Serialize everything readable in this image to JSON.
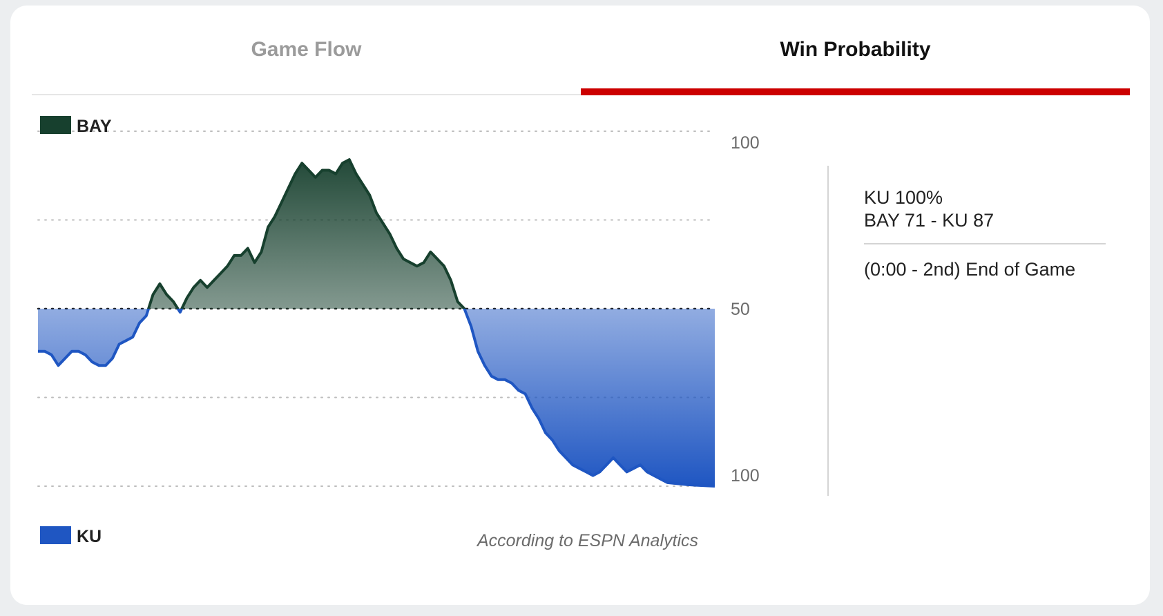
{
  "tabs": [
    {
      "label": "Game Flow",
      "active": false
    },
    {
      "label": "Win Probability",
      "active": true
    }
  ],
  "accent_color": "#cc0000",
  "teams": {
    "top": {
      "abbr": "BAY",
      "color": "#17402e"
    },
    "bottom": {
      "abbr": "KU",
      "color": "#1f56c2"
    }
  },
  "info": {
    "probability": "KU 100%",
    "score": "BAY 71 - KU 87",
    "status": "(0:00 - 2nd) End of Game"
  },
  "chart_data": {
    "type": "area",
    "title": "",
    "xlabel": "",
    "ylabel": "",
    "credit": "According to ESPN Analytics",
    "ylim": [
      0,
      100
    ],
    "y_tick_labels": [
      "100",
      "50",
      "100"
    ],
    "gridlines": [
      0,
      25,
      50,
      75,
      100
    ],
    "x": [
      0,
      3,
      6,
      9,
      12,
      15,
      18,
      21,
      24,
      27,
      30,
      33,
      36,
      39,
      42,
      45,
      48,
      51,
      54,
      57,
      60,
      63,
      66,
      69,
      72,
      75,
      78,
      81,
      84,
      87,
      90,
      93,
      96,
      99,
      102,
      105,
      108,
      111,
      114,
      117,
      120,
      123,
      126,
      129,
      132,
      135,
      138,
      141,
      144,
      147,
      150,
      153,
      156,
      159,
      162,
      165,
      168,
      171,
      174,
      177,
      180,
      183,
      186,
      189,
      192,
      195,
      198,
      201,
      204,
      207,
      210,
      213,
      216,
      219,
      222,
      225,
      228,
      231,
      234,
      237,
      240,
      243,
      246,
      249,
      252,
      255,
      258,
      261,
      264,
      267,
      270,
      273,
      276,
      279,
      282,
      285,
      288,
      291,
      294,
      297,
      300
    ],
    "series": [
      {
        "name": "BAY",
        "values": [
          38,
          38,
          37,
          34,
          36,
          38,
          38,
          37,
          35,
          34,
          34,
          36,
          40,
          41,
          42,
          46,
          48,
          54,
          57,
          54,
          52,
          49,
          53,
          56,
          58,
          56,
          58,
          60,
          62,
          65,
          65,
          67,
          63,
          66,
          73,
          76,
          80,
          84,
          88,
          91,
          89,
          87,
          89,
          89,
          88,
          91,
          92,
          88,
          85,
          82,
          77,
          74,
          71,
          67,
          64,
          63,
          62,
          63,
          66,
          64,
          62,
          58,
          52,
          50,
          45,
          38,
          34,
          31,
          30,
          30,
          29,
          27,
          26,
          22,
          19,
          15,
          13,
          10,
          8,
          6,
          5,
          4,
          3,
          4,
          6,
          8,
          6,
          4,
          5,
          6,
          4,
          3,
          2,
          1,
          0.8,
          0.6,
          0.4,
          0.3,
          0.2,
          0.1,
          0
        ]
      }
    ]
  }
}
